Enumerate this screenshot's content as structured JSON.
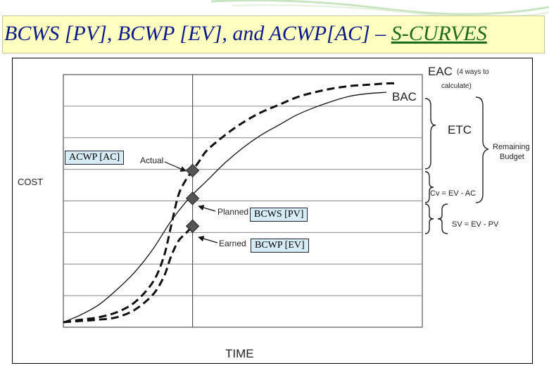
{
  "title": {
    "part1": "BCWS [PV], BCWP [EV], and ACWP[AC] – ",
    "part2": "S-CURVES"
  },
  "chart_data": {
    "type": "line",
    "title": "BCWS [PV], BCWP [EV], and ACWP[AC] – S-CURVES",
    "xlabel": "TIME",
    "ylabel": "COST",
    "xlim": [
      0,
      100
    ],
    "ylim": [
      0,
      100
    ],
    "grid": true,
    "status_date_x": 36,
    "series": [
      {
        "name": "Actual",
        "style": "dashed",
        "color": "#111111",
        "x": [
          0,
          5,
          10,
          15,
          20,
          25,
          28,
          30,
          32,
          34,
          36,
          38,
          40,
          45,
          50,
          55,
          60,
          65,
          70,
          75,
          80,
          85,
          90,
          93
        ],
        "y": [
          2,
          3,
          4,
          6,
          10,
          18,
          28,
          40,
          52,
          58,
          62,
          66,
          70,
          76,
          81,
          85,
          88,
          91,
          93,
          94.5,
          95.5,
          96,
          96.5,
          96.5
        ]
      },
      {
        "name": "Planned",
        "style": "solid",
        "color": "#111111",
        "x": [
          0,
          5,
          10,
          15,
          20,
          25,
          30,
          35,
          40,
          45,
          50,
          55,
          60,
          65,
          70,
          75,
          80,
          85,
          90
        ],
        "y": [
          2,
          5,
          9,
          15,
          22,
          31,
          42,
          51,
          58,
          65,
          71,
          76,
          80,
          84,
          87,
          89.5,
          91.5,
          92.5,
          93
        ]
      },
      {
        "name": "Earned",
        "style": "dashed",
        "color": "#111111",
        "x": [
          0,
          5,
          10,
          15,
          20,
          25,
          28,
          30,
          32,
          34,
          36
        ],
        "y": [
          2,
          2.5,
          3,
          4,
          7,
          13,
          20,
          28,
          34,
          37,
          40
        ]
      }
    ],
    "markers": [
      {
        "series": "Actual",
        "x": 36,
        "y": 62
      },
      {
        "series": "Planned",
        "x": 36,
        "y": 51
      },
      {
        "series": "Earned",
        "x": 36,
        "y": 40
      }
    ],
    "annotations": {
      "eac": "EAC",
      "eac_note": "(4 ways to",
      "eac_note2": "calculate)",
      "bac": "BAC",
      "etc": "ETC",
      "remaining1": "Remaining",
      "remaining2": "Budget",
      "cv": "Cv = EV - AC",
      "sv": "SV = EV - PV",
      "actual": "Actual",
      "planned": "Planned",
      "earned": "Earned"
    },
    "callouts": {
      "acwp": "ACWP [AC]",
      "bcws": "BCWS [PV]",
      "bcwp": "BCWP [EV]"
    }
  }
}
